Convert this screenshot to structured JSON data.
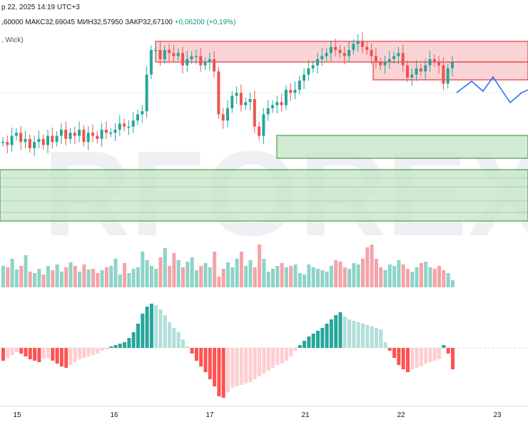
{
  "header": {
    "datetime": "р 22, 2025 14:19 UTC+3",
    "open_value": ",60000",
    "high_label": "МАКС",
    "high_value": "32,69045",
    "low_label": "МИН",
    "low_value": "32,57950",
    "close_label": "ЗАКР",
    "close_value": "32,67100",
    "change": "+0,06200 (+0,19%)",
    "indicator_label": ", Wick)"
  },
  "watermark": "RFOREX.c",
  "colors": {
    "up": "#26a69a",
    "down": "#ef5350",
    "vol_up": "#8fd3c8",
    "vol_down": "#f5a3a8",
    "macd_up_strong": "#26a69a",
    "macd_up_weak": "#b2dfdb",
    "macd_down_strong": "#ff5252",
    "macd_down_weak": "#ffcdd2",
    "resistance_fill": "#f8c8cc",
    "resistance_border": "#e53935",
    "support_fill": "#c8e6c9",
    "support_border": "#43a047",
    "projection": "#2962ff"
  },
  "chart_data": {
    "type": "candlestick",
    "x_labels": [
      "15",
      "16",
      "17",
      "21",
      "22",
      "23"
    ],
    "price_series": [
      3,
      2,
      5,
      6,
      3,
      4,
      1,
      3,
      4,
      2,
      5,
      3,
      5,
      7,
      4,
      6,
      5,
      7,
      3,
      6,
      5,
      4,
      7,
      6,
      6,
      7,
      9,
      8,
      8,
      10,
      12,
      13,
      25,
      33,
      33,
      30,
      33,
      32,
      31,
      32,
      28,
      30,
      31,
      31,
      28,
      29,
      30,
      26,
      12,
      10,
      14,
      18,
      19,
      15,
      16,
      17,
      8,
      5,
      12,
      14,
      15,
      16,
      15,
      20,
      19,
      20,
      23,
      25,
      27,
      28,
      30,
      31,
      32,
      34,
      33,
      32,
      31,
      33,
      35,
      36,
      34,
      33,
      31,
      29,
      28,
      29,
      30,
      31,
      32,
      28,
      24,
      25,
      27,
      26,
      28,
      30,
      29,
      28,
      22,
      27,
      29
    ],
    "projection": {
      "x": [
        640,
        661,
        677,
        691,
        705,
        715,
        731,
        740
      ],
      "y": [
        130,
        114,
        128,
        108,
        129,
        144,
        130,
        126
      ]
    },
    "resistance_zones": [
      {
        "x_start": 218,
        "top": 58,
        "bottom": 87
      },
      {
        "x_start": 523,
        "top": 87,
        "bottom": 112
      }
    ],
    "support_zones": [
      {
        "x_start": 388,
        "top": 190,
        "bottom": 222
      },
      {
        "x_start": 0,
        "top": 238,
        "bottom": 310
      }
    ],
    "volume": [
      30,
      28,
      40,
      25,
      30,
      45,
      22,
      20,
      26,
      18,
      30,
      24,
      32,
      22,
      28,
      35,
      30,
      22,
      32,
      25,
      26,
      20,
      24,
      28,
      30,
      40,
      18,
      34,
      20,
      26,
      28,
      50,
      38,
      30,
      26,
      42,
      55,
      30,
      48,
      38,
      28,
      36,
      42,
      24,
      30,
      34,
      28,
      50,
      15,
      26,
      35,
      28,
      40,
      50,
      30,
      38,
      28,
      60,
      40,
      22,
      26,
      30,
      34,
      28,
      30,
      32,
      20,
      18,
      32,
      28,
      26,
      24,
      22,
      30,
      38,
      36,
      28,
      26,
      34,
      32,
      40,
      56,
      60,
      40,
      28,
      24,
      32,
      30,
      38,
      32,
      26,
      22,
      28,
      34,
      36,
      28,
      26,
      30,
      24,
      20,
      10
    ],
    "macd": [
      -18,
      -14,
      -10,
      -6,
      -8,
      -12,
      -16,
      -18,
      -20,
      -15,
      -14,
      -18,
      -22,
      -26,
      -28,
      -24,
      -20,
      -16,
      -14,
      -12,
      -10,
      -8,
      -4,
      -2,
      2,
      4,
      6,
      8,
      14,
      22,
      34,
      48,
      58,
      62,
      60,
      54,
      46,
      36,
      28,
      22,
      12,
      2,
      -8,
      -18,
      -26,
      -34,
      -44,
      -54,
      -68,
      -70,
      -62,
      -56,
      -54,
      -52,
      -50,
      -48,
      -44,
      -40,
      -36,
      -32,
      -28,
      -24,
      -22,
      -18,
      -12,
      -4,
      4,
      10,
      16,
      20,
      24,
      28,
      34,
      40,
      46,
      50,
      44,
      40,
      38,
      36,
      34,
      32,
      30,
      28,
      26,
      8,
      -4,
      -14,
      -24,
      -30,
      -34,
      -30,
      -28,
      -26,
      -22,
      -20,
      -18,
      -16,
      4,
      -8,
      -30
    ]
  }
}
